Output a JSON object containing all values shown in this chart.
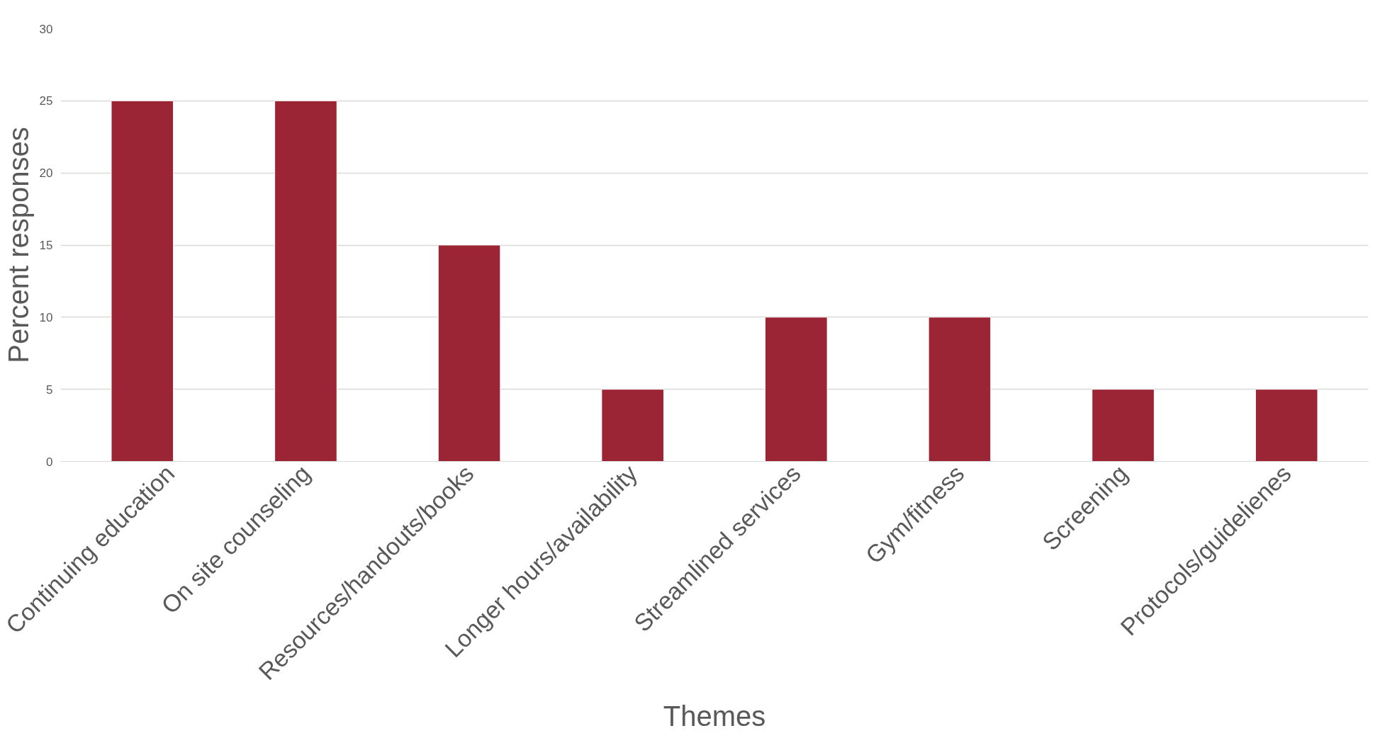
{
  "chart_data": {
    "type": "bar",
    "xlabel": "Themes",
    "ylabel": "Percent responses",
    "categories": [
      "Continuing education",
      "On site counseling",
      "Resources/handouts/books",
      "Longer hours/availability",
      "Streamlined services",
      "Gym/fitness",
      "Screening",
      "Protocols/guidelienes"
    ],
    "values": [
      25,
      25,
      15,
      5,
      10,
      10,
      5,
      5
    ],
    "color": "#9b2535",
    "ylim": [
      0,
      30
    ],
    "yticks": [
      0,
      5,
      10,
      15,
      20,
      25,
      30
    ],
    "grid": "y"
  }
}
